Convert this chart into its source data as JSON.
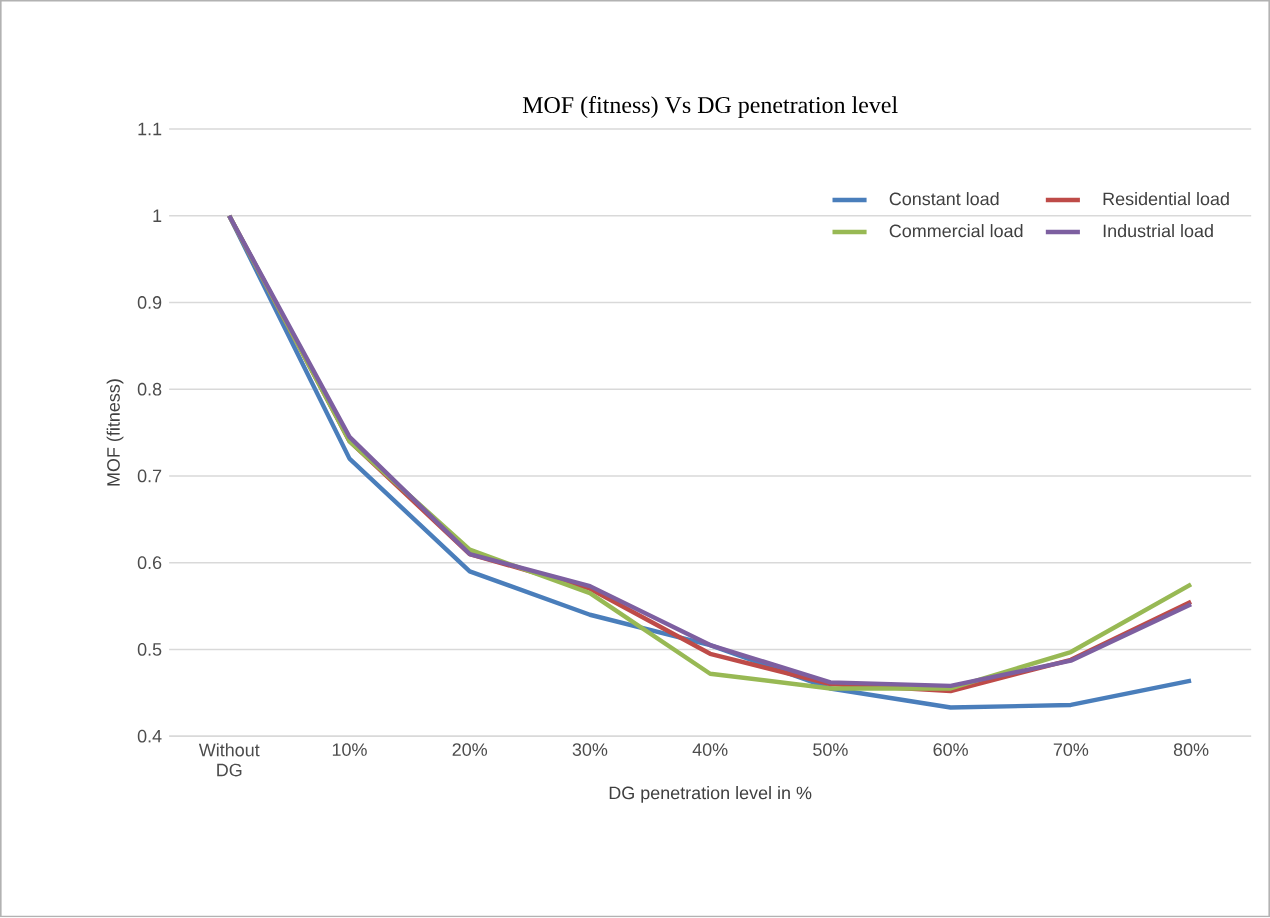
{
  "chart_data": {
    "type": "line",
    "title": "MOF (fitness) Vs DG penetration level",
    "xlabel": "DG penetration level in %",
    "ylabel": "MOF (fitness)",
    "categories": [
      "Without DG",
      "10%",
      "20%",
      "30%",
      "40%",
      "50%",
      "60%",
      "70%",
      "80%"
    ],
    "series": [
      {
        "name": "Constant load",
        "color": "#4a7ebb",
        "values": [
          1,
          0.72,
          0.59,
          0.54,
          0.505,
          0.455,
          0.433,
          0.436,
          0.464
        ]
      },
      {
        "name": "Residential load",
        "color": "#be4b48",
        "values": [
          1,
          0.74,
          0.61,
          0.57,
          0.495,
          0.46,
          0.452,
          0.488,
          0.555
        ]
      },
      {
        "name": "Commercial load",
        "color": "#98b954",
        "values": [
          1,
          0.74,
          0.615,
          0.565,
          0.472,
          0.455,
          0.455,
          0.497,
          0.575
        ]
      },
      {
        "name": "Industrial load",
        "color": "#7d5fa0",
        "values": [
          1,
          0.745,
          0.61,
          0.573,
          0.505,
          0.462,
          0.458,
          0.487,
          0.552
        ]
      }
    ],
    "ylim": [
      0.4,
      1.1
    ],
    "yticks": [
      0.4,
      0.5,
      0.6,
      0.7,
      0.8,
      0.9,
      1,
      1.1
    ],
    "grid": "y",
    "legend": "top right",
    "marker": "none",
    "line_style": "solid"
  }
}
